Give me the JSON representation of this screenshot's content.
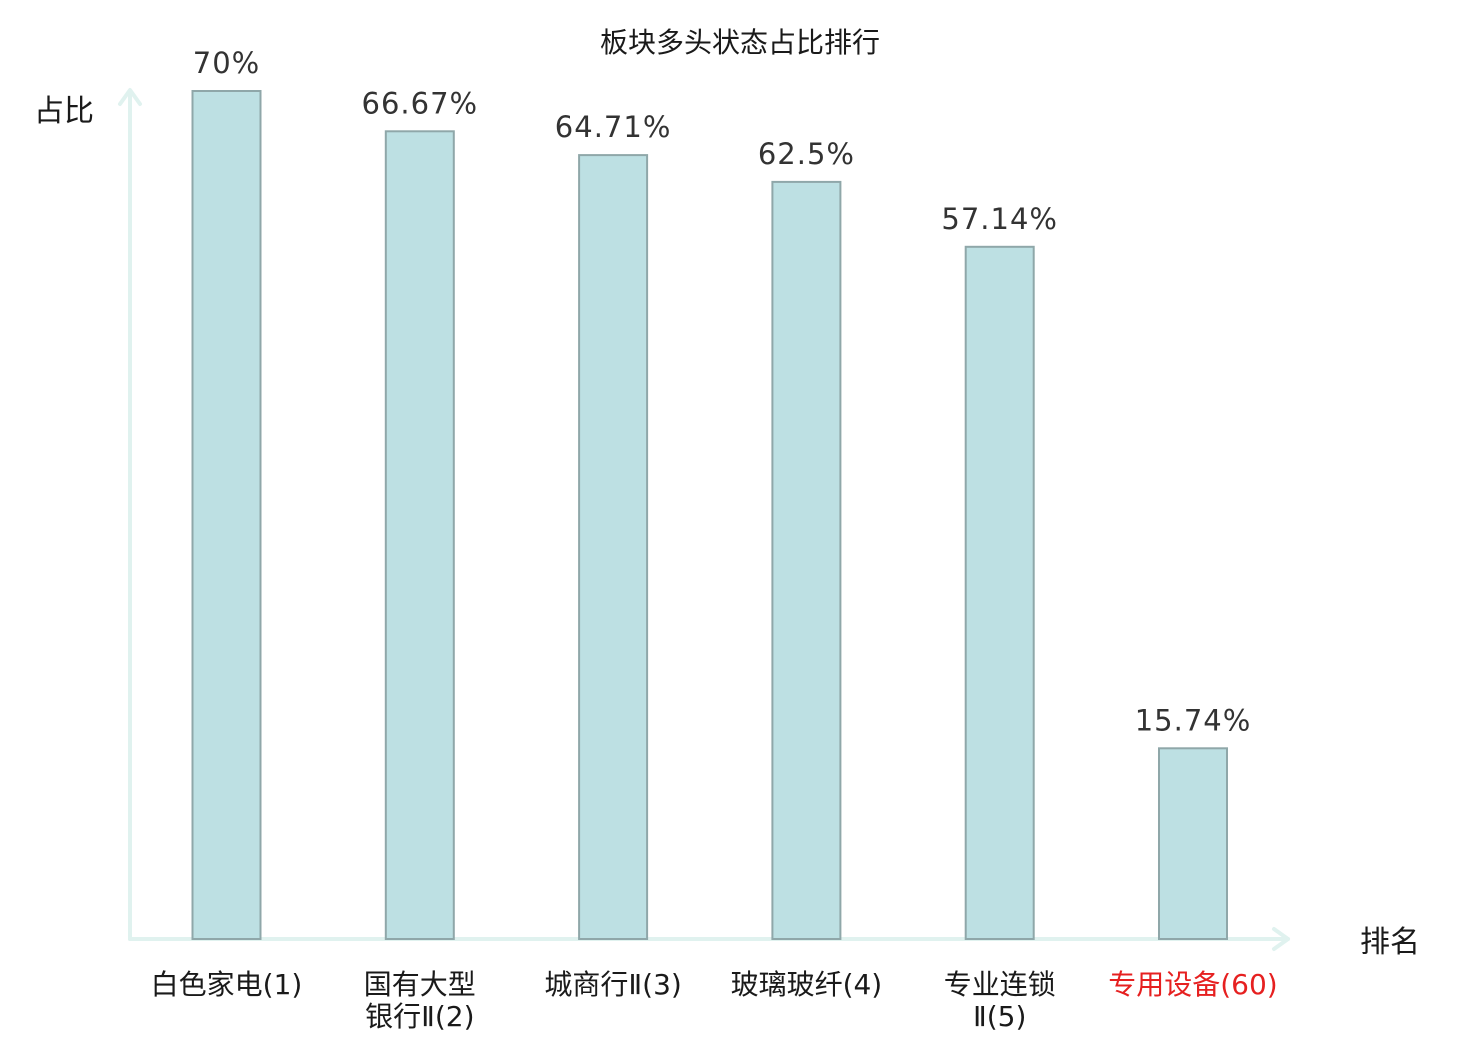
{
  "chart_data": {
    "type": "bar",
    "title": "板块多头状态占比排行",
    "ylabel": "占比",
    "xlabel": "排名",
    "ylim": [
      0,
      70
    ],
    "grid": false,
    "categories": [
      [
        "白色家电(1)"
      ],
      [
        "国有大型",
        "银行Ⅱ(2)"
      ],
      [
        "城商行Ⅱ(3)"
      ],
      [
        "玻璃玻纤(4)"
      ],
      [
        "专业连锁",
        "Ⅱ(5)"
      ],
      [
        "专用设备(60)"
      ]
    ],
    "values": [
      70,
      66.67,
      64.71,
      62.5,
      57.14,
      15.74
    ],
    "value_labels": [
      "70%",
      "66.67%",
      "64.71%",
      "62.5%",
      "57.14%",
      "15.74%"
    ],
    "highlighted_index": 5
  },
  "colors": {
    "bar_fill": "#bde0e3",
    "bar_stroke": "#8fa7a9",
    "axis": "#e0f2ef",
    "label": "#1a1a1a",
    "value_label": "#333333",
    "highlight": "#e62020"
  }
}
